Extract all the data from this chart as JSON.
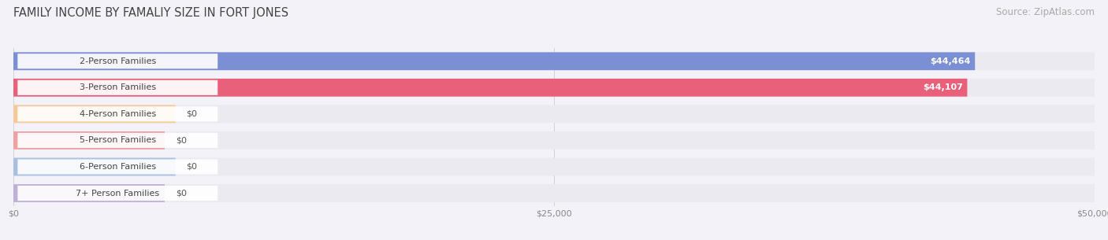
{
  "title": "FAMILY INCOME BY FAMALIY SIZE IN FORT JONES",
  "source": "Source: ZipAtlas.com",
  "categories": [
    "2-Person Families",
    "3-Person Families",
    "4-Person Families",
    "5-Person Families",
    "6-Person Families",
    "7+ Person Families"
  ],
  "values": [
    44464,
    44107,
    0,
    0,
    0,
    0
  ],
  "bar_colors": [
    "#7b8fd4",
    "#e8607a",
    "#f5c99a",
    "#f0a0a0",
    "#a8c0e0",
    "#c0b0d8"
  ],
  "value_labels": [
    "$44,464",
    "$44,107",
    "$0",
    "$0",
    "$0",
    "$0"
  ],
  "xlim": [
    0,
    50000
  ],
  "xticklabels": [
    "$0",
    "$25,000",
    "$50,000"
  ],
  "xtick_vals": [
    0,
    25000,
    50000
  ],
  "background_color": "#f2f2f8",
  "row_bg_color": "#eaeaf0",
  "title_fontsize": 10.5,
  "source_fontsize": 8.5,
  "label_fontsize": 8.0,
  "value_fontsize": 8.0,
  "stub_widths": [
    0,
    0,
    7500,
    7000,
    7500,
    7000
  ]
}
